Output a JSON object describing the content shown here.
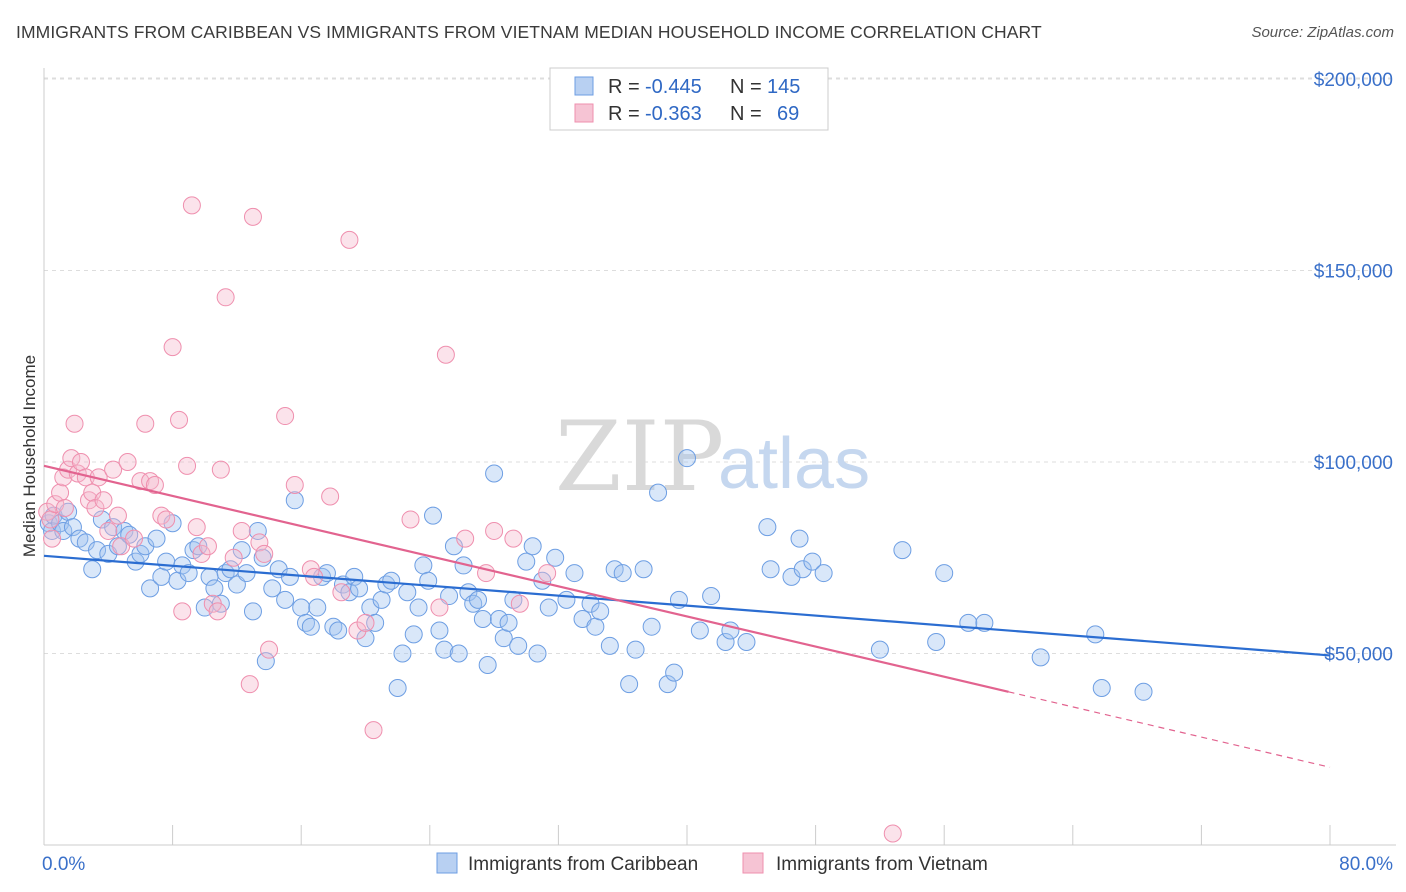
{
  "title": "IMMIGRANTS FROM CARIBBEAN VS IMMIGRANTS FROM VIETNAM MEDIAN HOUSEHOLD INCOME CORRELATION CHART",
  "source": "Source: ZipAtlas.com",
  "watermark": {
    "zip": "ZIP",
    "atlas": "atlas"
  },
  "legend": {
    "r_label": "R =",
    "n_label": "N =",
    "rows": [
      {
        "r": "-0.445",
        "n": "145"
      },
      {
        "r": "-0.363",
        "n": "69"
      }
    ]
  },
  "chart_data": {
    "type": "scatter",
    "title": "IMMIGRANTS FROM CARIBBEAN VS IMMIGRANTS FROM VIETNAM MEDIAN HOUSEHOLD INCOME CORRELATION CHART",
    "xlabel": "",
    "ylabel": "Median Household Income",
    "xlim": [
      0,
      80
    ],
    "ylim": [
      0,
      210000
    ],
    "x_tick_labels": [
      "0.0%",
      "80.0%"
    ],
    "y_ticks": [
      {
        "value": 50000,
        "label": "$50,000"
      },
      {
        "value": 100000,
        "label": "$100,000"
      },
      {
        "value": 150000,
        "label": "$150,000"
      },
      {
        "value": 200000,
        "label": "$200,000"
      }
    ],
    "grid": "horizontal dashed",
    "legend_position": "top-center",
    "colors": {
      "caribbean": "#6d9ee3",
      "vietnam": "#ef8fae",
      "caribbean_line": "#2b6dd1",
      "vietnam_line": "#e2638f"
    },
    "series": [
      {
        "name": "Immigrants from Caribbean",
        "r": -0.445,
        "n": 145,
        "trend": {
          "x": [
            0,
            80
          ],
          "y": [
            75500,
            49500
          ]
        },
        "points": [
          [
            0.3,
            84000
          ],
          [
            0.5,
            82000
          ],
          [
            0.6,
            86000
          ],
          [
            1.0,
            84000
          ],
          [
            1.2,
            82000
          ],
          [
            1.5,
            87000
          ],
          [
            1.8,
            83000
          ],
          [
            2.2,
            80000
          ],
          [
            2.6,
            79000
          ],
          [
            3.0,
            72000
          ],
          [
            3.3,
            77000
          ],
          [
            3.6,
            85000
          ],
          [
            4.0,
            76000
          ],
          [
            4.3,
            83000
          ],
          [
            4.6,
            78000
          ],
          [
            5.0,
            82000
          ],
          [
            5.3,
            81000
          ],
          [
            5.7,
            74000
          ],
          [
            6.0,
            76000
          ],
          [
            6.3,
            78000
          ],
          [
            6.6,
            67000
          ],
          [
            7.0,
            80000
          ],
          [
            7.3,
            70000
          ],
          [
            7.6,
            74000
          ],
          [
            8.0,
            84000
          ],
          [
            8.3,
            69000
          ],
          [
            8.6,
            73000
          ],
          [
            9.0,
            71000
          ],
          [
            9.3,
            77000
          ],
          [
            9.6,
            78000
          ],
          [
            10.0,
            62000
          ],
          [
            10.3,
            70000
          ],
          [
            10.6,
            67000
          ],
          [
            11.0,
            63000
          ],
          [
            11.3,
            71000
          ],
          [
            11.6,
            72000
          ],
          [
            12.0,
            68000
          ],
          [
            12.3,
            77000
          ],
          [
            12.6,
            71000
          ],
          [
            13.0,
            61000
          ],
          [
            13.3,
            82000
          ],
          [
            13.6,
            75000
          ],
          [
            13.8,
            48000
          ],
          [
            14.2,
            67000
          ],
          [
            14.6,
            72000
          ],
          [
            15.0,
            64000
          ],
          [
            15.3,
            70000
          ],
          [
            15.6,
            90000
          ],
          [
            16.0,
            62000
          ],
          [
            16.3,
            58000
          ],
          [
            16.6,
            57000
          ],
          [
            17.0,
            62000
          ],
          [
            17.3,
            70000
          ],
          [
            17.6,
            71000
          ],
          [
            18.0,
            57000
          ],
          [
            18.3,
            56000
          ],
          [
            18.6,
            68000
          ],
          [
            19.0,
            66000
          ],
          [
            19.3,
            70000
          ],
          [
            19.6,
            67000
          ],
          [
            20.0,
            54000
          ],
          [
            20.3,
            62000
          ],
          [
            20.6,
            58000
          ],
          [
            21.0,
            64000
          ],
          [
            21.3,
            68000
          ],
          [
            21.6,
            69000
          ],
          [
            22.0,
            41000
          ],
          [
            22.3,
            50000
          ],
          [
            22.6,
            66000
          ],
          [
            23.0,
            55000
          ],
          [
            23.3,
            62000
          ],
          [
            23.6,
            73000
          ],
          [
            23.9,
            69000
          ],
          [
            24.2,
            86000
          ],
          [
            24.6,
            56000
          ],
          [
            24.9,
            51000
          ],
          [
            25.2,
            65000
          ],
          [
            25.5,
            78000
          ],
          [
            25.8,
            50000
          ],
          [
            26.1,
            73000
          ],
          [
            26.4,
            66000
          ],
          [
            26.7,
            63000
          ],
          [
            27.0,
            64000
          ],
          [
            27.3,
            59000
          ],
          [
            27.6,
            47000
          ],
          [
            28.0,
            97000
          ],
          [
            28.3,
            59000
          ],
          [
            28.6,
            54000
          ],
          [
            28.9,
            58000
          ],
          [
            29.2,
            64000
          ],
          [
            29.5,
            52000
          ],
          [
            30.0,
            74000
          ],
          [
            30.4,
            78000
          ],
          [
            30.7,
            50000
          ],
          [
            31.0,
            69000
          ],
          [
            31.4,
            62000
          ],
          [
            31.8,
            75000
          ],
          [
            32.5,
            64000
          ],
          [
            33.0,
            71000
          ],
          [
            33.5,
            59000
          ],
          [
            34.0,
            63000
          ],
          [
            34.3,
            57000
          ],
          [
            34.6,
            61000
          ],
          [
            35.2,
            52000
          ],
          [
            35.5,
            72000
          ],
          [
            36.0,
            71000
          ],
          [
            36.4,
            42000
          ],
          [
            36.8,
            51000
          ],
          [
            37.3,
            72000
          ],
          [
            37.8,
            57000
          ],
          [
            38.2,
            92000
          ],
          [
            38.8,
            42000
          ],
          [
            39.2,
            45000
          ],
          [
            39.5,
            64000
          ],
          [
            40.0,
            101000
          ],
          [
            40.8,
            56000
          ],
          [
            41.5,
            65000
          ],
          [
            42.4,
            53000
          ],
          [
            42.7,
            56000
          ],
          [
            43.7,
            53000
          ],
          [
            45.0,
            83000
          ],
          [
            45.2,
            72000
          ],
          [
            46.5,
            70000
          ],
          [
            47.0,
            80000
          ],
          [
            47.2,
            72000
          ],
          [
            47.8,
            74000
          ],
          [
            48.5,
            71000
          ],
          [
            52.0,
            51000
          ],
          [
            53.4,
            77000
          ],
          [
            55.5,
            53000
          ],
          [
            56.0,
            71000
          ],
          [
            57.5,
            58000
          ],
          [
            58.5,
            58000
          ],
          [
            62.0,
            49000
          ],
          [
            65.4,
            55000
          ],
          [
            65.8,
            41000
          ],
          [
            68.4,
            40000
          ]
        ]
      },
      {
        "name": "Immigrants from Vietnam",
        "r": -0.363,
        "n": 69,
        "trend": {
          "x": [
            0,
            60
          ],
          "y": [
            99000,
            40000
          ]
        },
        "trend_dashed": {
          "x": [
            60,
            80
          ],
          "y": [
            40000,
            20300
          ]
        },
        "points": [
          [
            0.2,
            87000
          ],
          [
            0.4,
            85000
          ],
          [
            0.5,
            80000
          ],
          [
            0.7,
            89000
          ],
          [
            1.0,
            92000
          ],
          [
            1.2,
            96000
          ],
          [
            1.3,
            88000
          ],
          [
            1.5,
            98000
          ],
          [
            1.7,
            101000
          ],
          [
            1.9,
            110000
          ],
          [
            2.1,
            97000
          ],
          [
            2.3,
            100000
          ],
          [
            2.6,
            96000
          ],
          [
            2.8,
            90000
          ],
          [
            3.0,
            92000
          ],
          [
            3.2,
            88000
          ],
          [
            3.4,
            96000
          ],
          [
            3.7,
            90000
          ],
          [
            4.0,
            82000
          ],
          [
            4.3,
            98000
          ],
          [
            4.6,
            86000
          ],
          [
            4.8,
            78000
          ],
          [
            5.2,
            100000
          ],
          [
            5.6,
            80000
          ],
          [
            6.0,
            95000
          ],
          [
            6.3,
            110000
          ],
          [
            6.6,
            95000
          ],
          [
            6.9,
            94000
          ],
          [
            7.3,
            86000
          ],
          [
            7.6,
            85000
          ],
          [
            8.0,
            130000
          ],
          [
            8.4,
            111000
          ],
          [
            8.6,
            61000
          ],
          [
            8.9,
            99000
          ],
          [
            9.2,
            167000
          ],
          [
            9.5,
            83000
          ],
          [
            9.8,
            76000
          ],
          [
            10.2,
            78000
          ],
          [
            10.5,
            63000
          ],
          [
            10.8,
            61000
          ],
          [
            11.0,
            98000
          ],
          [
            11.3,
            143000
          ],
          [
            11.8,
            75000
          ],
          [
            12.3,
            82000
          ],
          [
            12.8,
            42000
          ],
          [
            13.0,
            164000
          ],
          [
            13.4,
            79000
          ],
          [
            13.7,
            76000
          ],
          [
            14.0,
            51000
          ],
          [
            15.0,
            112000
          ],
          [
            15.6,
            94000
          ],
          [
            16.6,
            72000
          ],
          [
            16.8,
            70000
          ],
          [
            17.8,
            91000
          ],
          [
            18.5,
            66000
          ],
          [
            19.0,
            158000
          ],
          [
            19.5,
            56000
          ],
          [
            20.0,
            58000
          ],
          [
            20.5,
            30000
          ],
          [
            22.8,
            85000
          ],
          [
            24.6,
            62000
          ],
          [
            25.0,
            128000
          ],
          [
            26.2,
            80000
          ],
          [
            27.5,
            71000
          ],
          [
            28.0,
            82000
          ],
          [
            29.2,
            80000
          ],
          [
            29.6,
            63000
          ],
          [
            31.3,
            71000
          ],
          [
            52.8,
            3000
          ]
        ]
      }
    ]
  },
  "bottom_legend": [
    {
      "label": "Immigrants from Caribbean",
      "color": "#b8d0f2"
    },
    {
      "label": "Immigrants from Vietnam",
      "color": "#f6c4d4"
    }
  ]
}
